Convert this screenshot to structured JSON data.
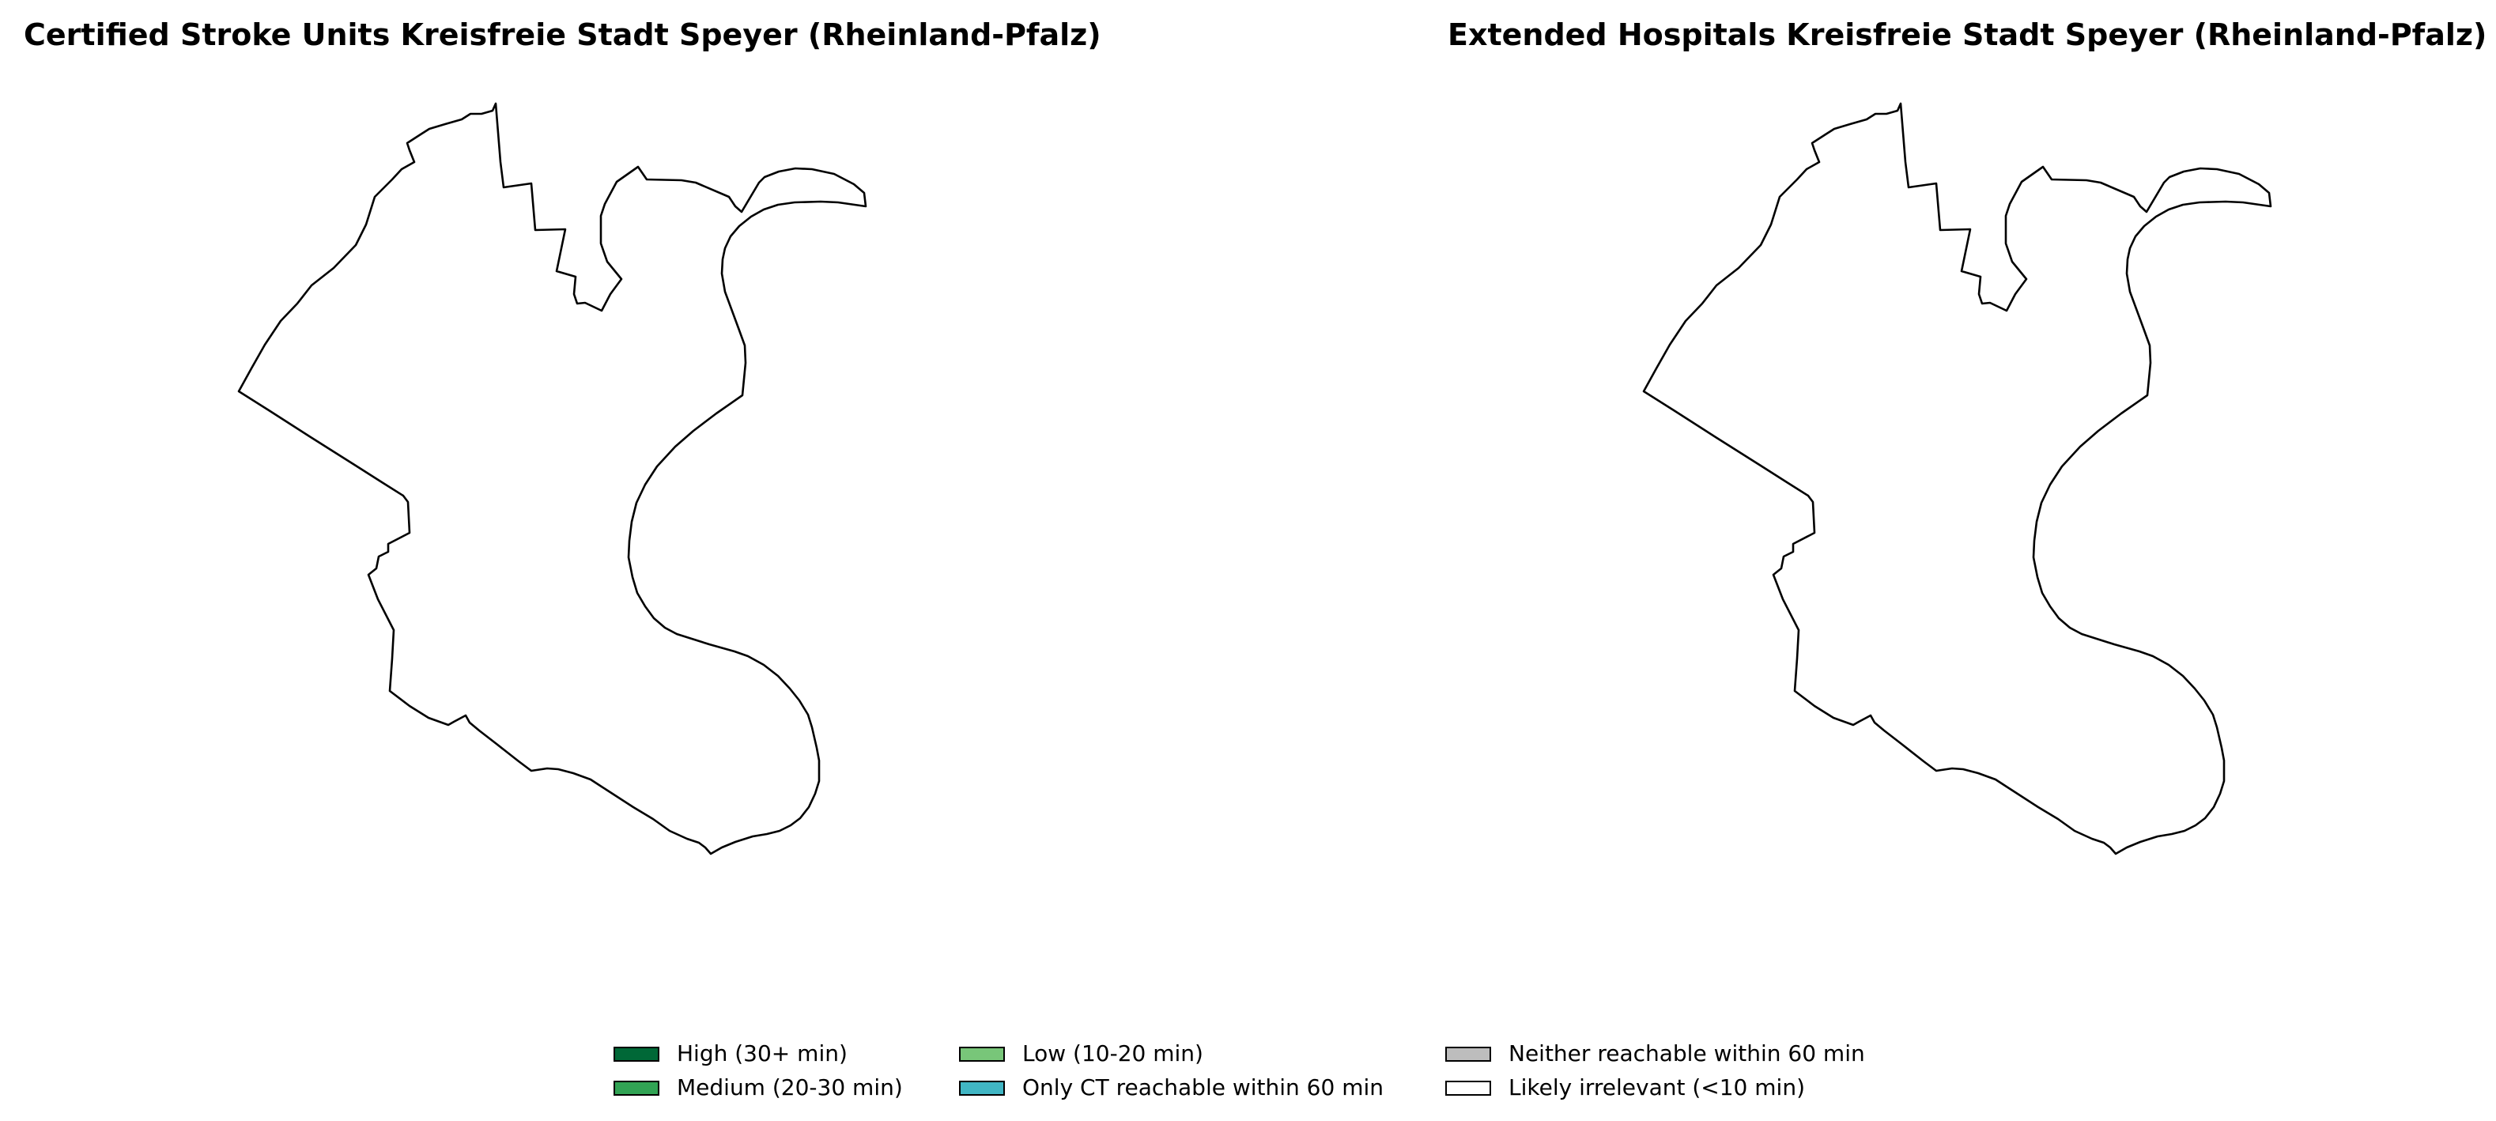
{
  "panels": [
    {
      "title": "Certified Stroke Units Kreisfreie Stadt Speyer (Rheinland-Pfalz)",
      "region_fill": "#ffffff"
    },
    {
      "title": "Extended Hospitals Kreisfreie Stadt Speyer (Rheinland-Pfalz)",
      "region_fill": "#ffffff"
    }
  ],
  "legend": {
    "items": [
      {
        "label": "High (30+ min)",
        "color": "#006837"
      },
      {
        "label": "Medium (20-30 min)",
        "color": "#31a354"
      },
      {
        "label": "Low (10-20 min)",
        "color": "#78c679"
      },
      {
        "label": "Only CT reachable within 60 min",
        "color": "#41b6c4"
      },
      {
        "label": "Neither reachable within 60 min",
        "color": "#bdbdbd"
      },
      {
        "label": "Likely irrelevant (<10 min)",
        "color": "#ffffff"
      }
    ]
  }
}
